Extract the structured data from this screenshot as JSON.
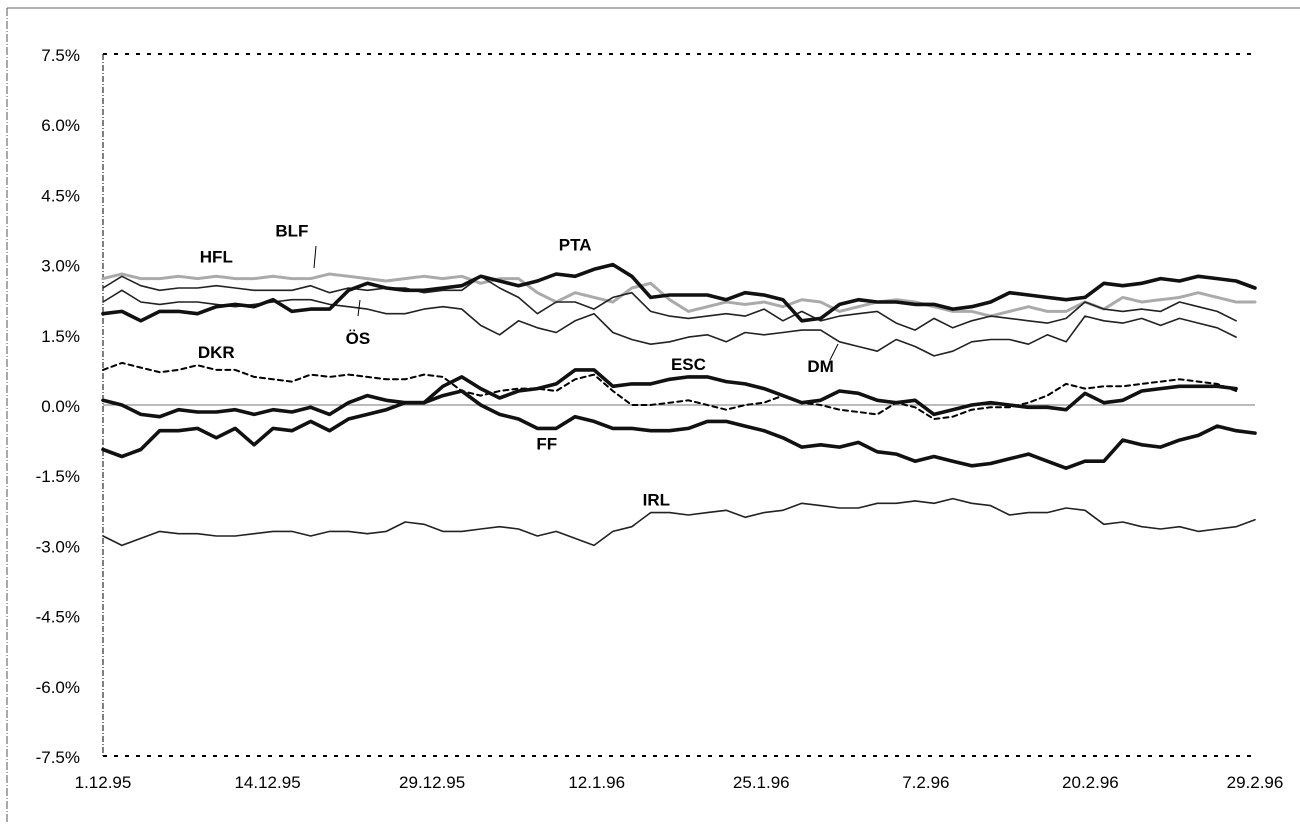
{
  "chart_data": {
    "type": "line",
    "title": "",
    "xlabel": "",
    "ylabel": "",
    "x_tick_labels": [
      "1.12.95",
      "14.12.95",
      "29.12.95",
      "12.1.96",
      "25.1.96",
      "7.2.96",
      "20.2.96",
      "29.2.96"
    ],
    "y_tick_labels": [
      "7.5%",
      "6.0%",
      "4.5%",
      "3.0%",
      "1.5%",
      "0.0%",
      "-1.5%",
      "-3.0%",
      "-4.5%",
      "-6.0%",
      "-7.5%"
    ],
    "ylim": [
      -7.5,
      7.5
    ],
    "grid": false,
    "series": [
      {
        "name": "HFL",
        "style": "light",
        "values": [
          2.7,
          2.8,
          2.7,
          2.7,
          2.75,
          2.7,
          2.75,
          2.7,
          2.7,
          2.75,
          2.7,
          2.7,
          2.8,
          2.75,
          2.7,
          2.65,
          2.7,
          2.75,
          2.7,
          2.75,
          2.6,
          2.7,
          2.7,
          2.4,
          2.2,
          2.4,
          2.3,
          2.2,
          2.5,
          2.6,
          2.25,
          2.0,
          2.1,
          2.2,
          2.15,
          2.2,
          2.1,
          2.25,
          2.2,
          2.0,
          2.1,
          2.2,
          2.25,
          2.2,
          2.1,
          2.0,
          2.0,
          1.9,
          2.0,
          2.1,
          2.0,
          2.0,
          2.2,
          2.05,
          2.3,
          2.2,
          2.25,
          2.3,
          2.4,
          2.3,
          2.2,
          2.2
        ]
      },
      {
        "name": "BLF",
        "style": "thin",
        "values": [
          2.5,
          2.75,
          2.55,
          2.45,
          2.5,
          2.5,
          2.55,
          2.5,
          2.45,
          2.45,
          2.45,
          2.55,
          2.4,
          2.5,
          2.45,
          2.5,
          2.5,
          2.4,
          2.45,
          2.45,
          2.75,
          2.5,
          2.3,
          1.95,
          2.2,
          2.2,
          2.05,
          2.3,
          2.4,
          2.0,
          1.9,
          1.85,
          1.9,
          1.95,
          1.9,
          2.05,
          1.8,
          2.0,
          1.8,
          1.9,
          1.95,
          2.0,
          1.75,
          1.6,
          1.85,
          1.65,
          1.8,
          1.9,
          1.85,
          1.8,
          1.75,
          1.85,
          2.2,
          2.05,
          2.0,
          2.05,
          2.0,
          2.2,
          2.1,
          2.0,
          1.8
        ]
      },
      {
        "name": "ÖS",
        "style": "thin",
        "values": [
          2.2,
          2.45,
          2.2,
          2.15,
          2.2,
          2.2,
          2.15,
          2.1,
          2.15,
          2.2,
          2.25,
          2.25,
          2.15,
          2.1,
          2.05,
          1.95,
          1.95,
          2.05,
          2.1,
          2.05,
          1.7,
          1.5,
          1.8,
          1.65,
          1.55,
          1.8,
          1.95,
          1.55,
          1.4,
          1.3,
          1.35,
          1.45,
          1.5,
          1.35,
          1.55,
          1.5,
          1.55,
          1.6,
          1.6,
          1.35,
          1.25,
          1.15,
          1.4,
          1.25,
          1.05,
          1.15,
          1.35,
          1.4,
          1.4,
          1.3,
          1.5,
          1.35,
          1.9,
          1.8,
          1.75,
          1.85,
          1.7,
          1.85,
          1.75,
          1.65,
          1.45
        ]
      },
      {
        "name": "PTA",
        "style": "thick",
        "values": [
          1.95,
          2.0,
          1.8,
          2.0,
          2.0,
          1.95,
          2.1,
          2.15,
          2.1,
          2.25,
          2.0,
          2.05,
          2.05,
          2.45,
          2.6,
          2.5,
          2.45,
          2.45,
          2.5,
          2.55,
          2.75,
          2.65,
          2.55,
          2.65,
          2.8,
          2.75,
          2.9,
          3.0,
          2.75,
          2.3,
          2.35,
          2.35,
          2.35,
          2.25,
          2.4,
          2.35,
          2.25,
          1.8,
          1.85,
          2.15,
          2.25,
          2.2,
          2.2,
          2.15,
          2.15,
          2.05,
          2.1,
          2.2,
          2.4,
          2.35,
          2.3,
          2.25,
          2.3,
          2.6,
          2.55,
          2.6,
          2.7,
          2.65,
          2.75,
          2.7,
          2.65,
          2.5
        ]
      },
      {
        "name": "DKR",
        "style": "dashed",
        "values": [
          0.75,
          0.9,
          0.8,
          0.7,
          0.75,
          0.85,
          0.75,
          0.75,
          0.6,
          0.55,
          0.5,
          0.65,
          0.6,
          0.65,
          0.6,
          0.55,
          0.55,
          0.65,
          0.6,
          0.3,
          0.2,
          0.3,
          0.35,
          0.35,
          0.3,
          0.55,
          0.65,
          0.3,
          0.0,
          0.0,
          0.05,
          0.1,
          0.0,
          -0.1,
          0.0,
          0.05,
          0.2,
          0.05,
          0.0,
          -0.1,
          -0.15,
          -0.2,
          0.05,
          -0.05,
          -0.3,
          -0.25,
          -0.1,
          -0.05,
          -0.05,
          0.05,
          0.2,
          0.45,
          0.35,
          0.4,
          0.4,
          0.45,
          0.5,
          0.55,
          0.5,
          0.45,
          0.3
        ]
      },
      {
        "name": "ESC",
        "style": "thick",
        "values": [
          0.1,
          0.0,
          -0.2,
          -0.25,
          -0.1,
          -0.15,
          -0.15,
          -0.1,
          -0.2,
          -0.1,
          -0.15,
          -0.05,
          -0.2,
          0.05,
          0.2,
          0.1,
          0.05,
          0.05,
          0.4,
          0.6,
          0.35,
          0.15,
          0.3,
          0.35,
          0.45,
          0.75,
          0.75,
          0.4,
          0.45,
          0.45,
          0.55,
          0.6,
          0.6,
          0.5,
          0.45,
          0.35,
          0.2,
          0.05,
          0.1,
          0.3,
          0.25,
          0.1,
          0.05,
          0.1,
          -0.2,
          -0.1,
          0.0,
          0.05,
          0.0,
          -0.05,
          -0.05,
          -0.1,
          0.25,
          0.05,
          0.1,
          0.3,
          0.35,
          0.4,
          0.4,
          0.4,
          0.35
        ]
      },
      {
        "name": "FF",
        "style": "thick",
        "values": [
          -0.95,
          -1.1,
          -0.95,
          -0.55,
          -0.55,
          -0.5,
          -0.7,
          -0.5,
          -0.85,
          -0.5,
          -0.55,
          -0.35,
          -0.55,
          -0.3,
          -0.2,
          -0.1,
          0.05,
          0.05,
          0.2,
          0.3,
          0.0,
          -0.2,
          -0.3,
          -0.5,
          -0.5,
          -0.25,
          -0.35,
          -0.5,
          -0.5,
          -0.55,
          -0.55,
          -0.5,
          -0.35,
          -0.35,
          -0.45,
          -0.55,
          -0.7,
          -0.9,
          -0.85,
          -0.9,
          -0.8,
          -1.0,
          -1.05,
          -1.2,
          -1.1,
          -1.2,
          -1.3,
          -1.25,
          -1.15,
          -1.05,
          -1.2,
          -1.35,
          -1.2,
          -1.2,
          -0.75,
          -0.85,
          -0.9,
          -0.75,
          -0.65,
          -0.45,
          -0.55,
          -0.6
        ]
      },
      {
        "name": "IRL",
        "style": "thin",
        "values": [
          -2.8,
          -3.0,
          -2.85,
          -2.7,
          -2.75,
          -2.75,
          -2.8,
          -2.8,
          -2.75,
          -2.7,
          -2.7,
          -2.8,
          -2.7,
          -2.7,
          -2.75,
          -2.7,
          -2.5,
          -2.55,
          -2.7,
          -2.7,
          -2.65,
          -2.6,
          -2.65,
          -2.8,
          -2.7,
          -2.85,
          -3.0,
          -2.7,
          -2.6,
          -2.3,
          -2.3,
          -2.35,
          -2.3,
          -2.25,
          -2.4,
          -2.3,
          -2.25,
          -2.1,
          -2.15,
          -2.2,
          -2.2,
          -2.1,
          -2.1,
          -2.05,
          -2.1,
          -2.0,
          -2.1,
          -2.15,
          -2.35,
          -2.3,
          -2.3,
          -2.2,
          -2.25,
          -2.55,
          -2.5,
          -2.6,
          -2.65,
          -2.6,
          -2.7,
          -2.65,
          -2.6,
          -2.45
        ]
      }
    ],
    "annotations": [
      {
        "text": "HFL",
        "x": 6,
        "y": 3.05
      },
      {
        "text": "BLF",
        "x": 10,
        "y": 3.6
      },
      {
        "text": "PTA",
        "x": 25,
        "y": 3.3
      },
      {
        "text": "ÖS",
        "x": 13.5,
        "y": 1.3
      },
      {
        "text": "DKR",
        "x": 6,
        "y": 1.0
      },
      {
        "text": "ESC",
        "x": 31,
        "y": 0.75
      },
      {
        "text": "DM",
        "x": 38,
        "y": 0.7
      },
      {
        "text": "FF",
        "x": 23.5,
        "y": -0.95
      },
      {
        "text": "IRL",
        "x": 29.3,
        "y": -2.15
      }
    ]
  },
  "colors": {
    "axis": "#000000",
    "thick": "#111111",
    "thin": "#222222",
    "light": "#aaaaaa",
    "dashed": "#000000"
  }
}
